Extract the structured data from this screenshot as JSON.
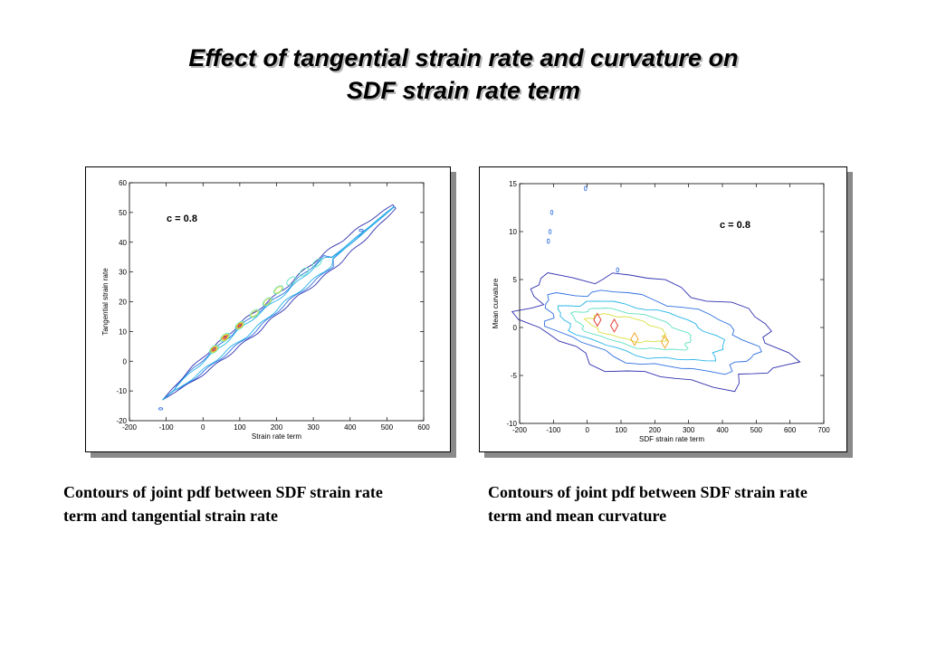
{
  "page": {
    "title_line1": "Effect of tangential strain rate and curvature on",
    "title_line2": "SDF strain rate term"
  },
  "chart_data": [
    {
      "type": "contour",
      "annotation": "c = 0.8",
      "xlabel": "Strain rate term",
      "ylabel": "Tangential strain rate",
      "xlim": [
        -200,
        600
      ],
      "ylim": [
        -20,
        60
      ],
      "xticks": [
        -200,
        -100,
        0,
        100,
        200,
        300,
        400,
        500,
        600
      ],
      "yticks": [
        -20,
        -10,
        0,
        10,
        20,
        30,
        40,
        50,
        60
      ],
      "caption": "Contours of joint pdf between SDF strain rate term and tangential strain rate",
      "caption_line1": "Contours of joint pdf between SDF strain rate",
      "caption_line2": "term and tangential strain rate",
      "band": {
        "x_start": -110,
        "x_end": 520,
        "y_start": -13,
        "y_end": 52
      },
      "peaks": [
        [
          30,
          4
        ],
        [
          60,
          8
        ],
        [
          100,
          12
        ],
        [
          140,
          16
        ],
        [
          175,
          20
        ],
        [
          205,
          24
        ],
        [
          240,
          27
        ],
        [
          275,
          30
        ],
        [
          310,
          33
        ]
      ],
      "outliers": [
        [
          -115,
          -16
        ],
        [
          430,
          44
        ]
      ],
      "level_colors": [
        "#3030b0",
        "#2e6fe0",
        "#24b4e8",
        "#5ee0c0",
        "#d8e040",
        "#f0a020",
        "#e03020"
      ]
    },
    {
      "type": "contour",
      "annotation": "c = 0.8",
      "xlabel": "SDF strain rate term",
      "ylabel": "Mean curvature",
      "xlim": [
        -200,
        700
      ],
      "ylim": [
        -10,
        15
      ],
      "xticks": [
        -200,
        -100,
        0,
        100,
        200,
        300,
        400,
        500,
        600,
        700
      ],
      "yticks": [
        -10,
        -5,
        0,
        5,
        10,
        15
      ],
      "caption": "Contours of joint pdf between SDF strain rate term and mean curvature",
      "caption_line1": "Contours of joint pdf between SDF strain rate",
      "caption_line2": "term and mean curvature",
      "center": [
        150,
        0
      ],
      "peaks": [
        [
          30,
          0.8
        ],
        [
          80,
          0.2
        ],
        [
          140,
          -1.2
        ],
        [
          230,
          -1.5
        ]
      ],
      "outliers": [
        [
          -5,
          14.5
        ],
        [
          -105,
          12
        ],
        [
          -115,
          9
        ],
        [
          -110,
          10
        ],
        [
          90,
          6
        ]
      ],
      "level_colors": [
        "#3030b0",
        "#2e6fe0",
        "#24b4e8",
        "#5ee0c0",
        "#d8e040",
        "#f0a020",
        "#e03020"
      ]
    }
  ]
}
